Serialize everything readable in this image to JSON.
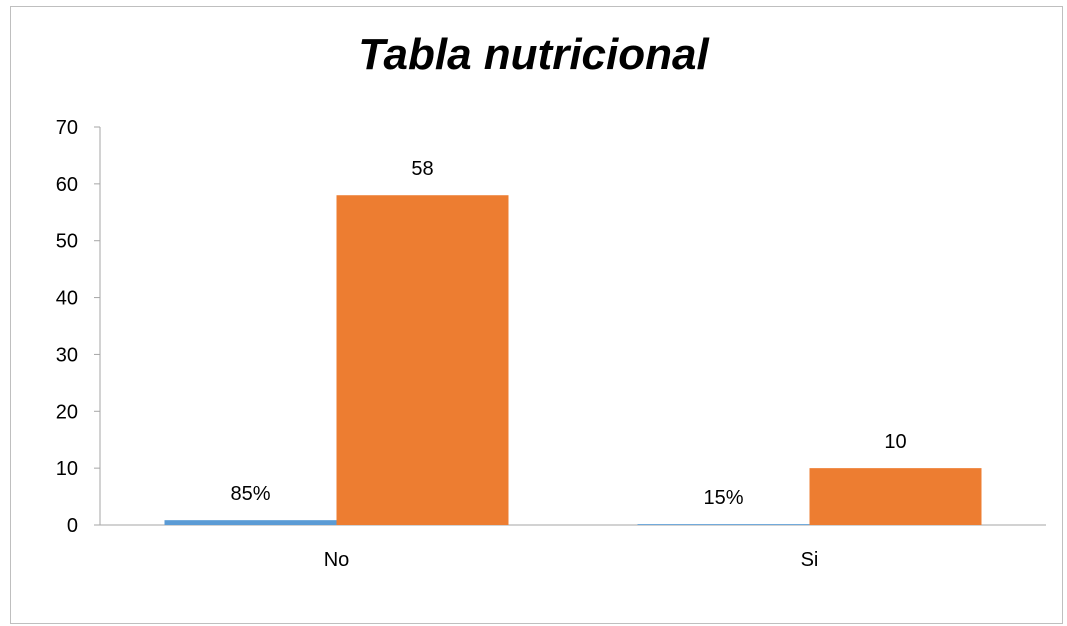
{
  "chart_data": {
    "type": "bar",
    "title": "Tabla nutricional",
    "categories": [
      "No",
      "Si"
    ],
    "series": [
      {
        "values": [
          0.85,
          0.15
        ],
        "data_labels": [
          "85%",
          "15%"
        ],
        "color": "#5b9bd5"
      },
      {
        "values": [
          58,
          10
        ],
        "data_labels": [
          "58",
          "10"
        ],
        "color": "#ed7d31"
      }
    ],
    "ylim": [
      0,
      70
    ],
    "yticks": [
      0,
      10,
      20,
      30,
      40,
      50,
      60,
      70
    ],
    "grid": false,
    "legend": "none"
  }
}
